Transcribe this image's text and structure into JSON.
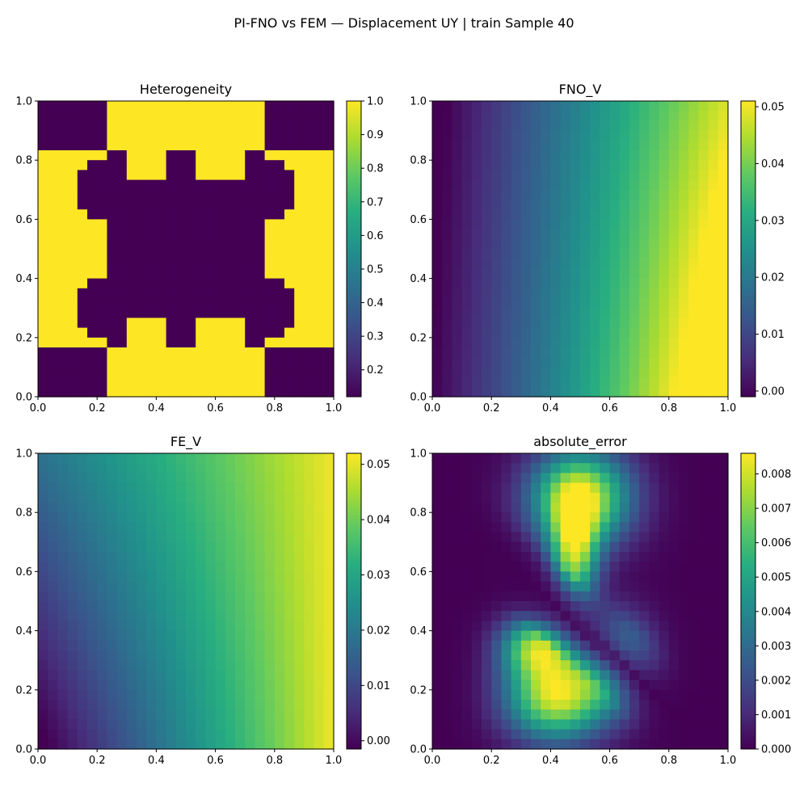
{
  "figure": {
    "suptitle": "PI-FNO vs FEM — Displacement UY | train Sample 40"
  },
  "chart_data": [
    {
      "type": "heatmap",
      "title": "Heterogeneity",
      "grid": [
        30,
        30
      ],
      "x_ticks": [
        "0.0",
        "0.2",
        "0.4",
        "0.6",
        "0.8",
        "1.0"
      ],
      "y_ticks": [
        "0.0",
        "0.2",
        "0.4",
        "0.6",
        "0.8",
        "1.0"
      ],
      "xlim": [
        0,
        1
      ],
      "ylim": [
        0,
        1
      ],
      "colorbar": {
        "min": 0.12,
        "max": 1.0,
        "ticks": [
          "0.2",
          "0.3",
          "0.4",
          "0.5",
          "0.6",
          "0.7",
          "0.8",
          "0.9",
          "1.0"
        ],
        "tick_values": [
          0.2,
          0.3,
          0.4,
          0.5,
          0.6,
          0.7,
          0.8,
          0.9,
          1.0
        ]
      },
      "field": "heterogeneity_pattern"
    },
    {
      "type": "heatmap",
      "title": "FNO_V",
      "grid": [
        30,
        30
      ],
      "x_ticks": [
        "0.0",
        "0.2",
        "0.4",
        "0.6",
        "0.8",
        "1.0"
      ],
      "y_ticks": [
        "0.0",
        "0.2",
        "0.4",
        "0.6",
        "0.8",
        "1.0"
      ],
      "xlim": [
        0,
        1
      ],
      "ylim": [
        0,
        1
      ],
      "colorbar": {
        "min": -0.001,
        "max": 0.051,
        "ticks": [
          "0.00",
          "0.01",
          "0.02",
          "0.03",
          "0.04",
          "0.05"
        ],
        "tick_values": [
          0.0,
          0.01,
          0.02,
          0.03,
          0.04,
          0.05
        ]
      },
      "field": "fno_displacement"
    },
    {
      "type": "heatmap",
      "title": "FE_V",
      "grid": [
        30,
        30
      ],
      "x_ticks": [
        "0.0",
        "0.2",
        "0.4",
        "0.6",
        "0.8",
        "1.0"
      ],
      "y_ticks": [
        "0.0",
        "0.2",
        "0.4",
        "0.6",
        "0.8",
        "1.0"
      ],
      "xlim": [
        0,
        1
      ],
      "ylim": [
        0,
        1
      ],
      "colorbar": {
        "min": -0.0015,
        "max": 0.052,
        "ticks": [
          "0.00",
          "0.01",
          "0.02",
          "0.03",
          "0.04",
          "0.05"
        ],
        "tick_values": [
          0.0,
          0.01,
          0.02,
          0.03,
          0.04,
          0.05
        ]
      },
      "field": "fe_displacement"
    },
    {
      "type": "heatmap",
      "title": "absolute_error",
      "grid": [
        30,
        30
      ],
      "x_ticks": [
        "0.0",
        "0.2",
        "0.4",
        "0.6",
        "0.8",
        "1.0"
      ],
      "y_ticks": [
        "0.0",
        "0.2",
        "0.4",
        "0.6",
        "0.8",
        "1.0"
      ],
      "xlim": [
        0,
        1
      ],
      "ylim": [
        0,
        1
      ],
      "colorbar": {
        "min": 0.0,
        "max": 0.0086,
        "ticks": [
          "0.000",
          "0.001",
          "0.002",
          "0.003",
          "0.004",
          "0.005",
          "0.006",
          "0.007",
          "0.008"
        ],
        "tick_values": [
          0.0,
          0.001,
          0.002,
          0.003,
          0.004,
          0.005,
          0.006,
          0.007,
          0.008
        ]
      },
      "field": "absolute_error"
    }
  ]
}
